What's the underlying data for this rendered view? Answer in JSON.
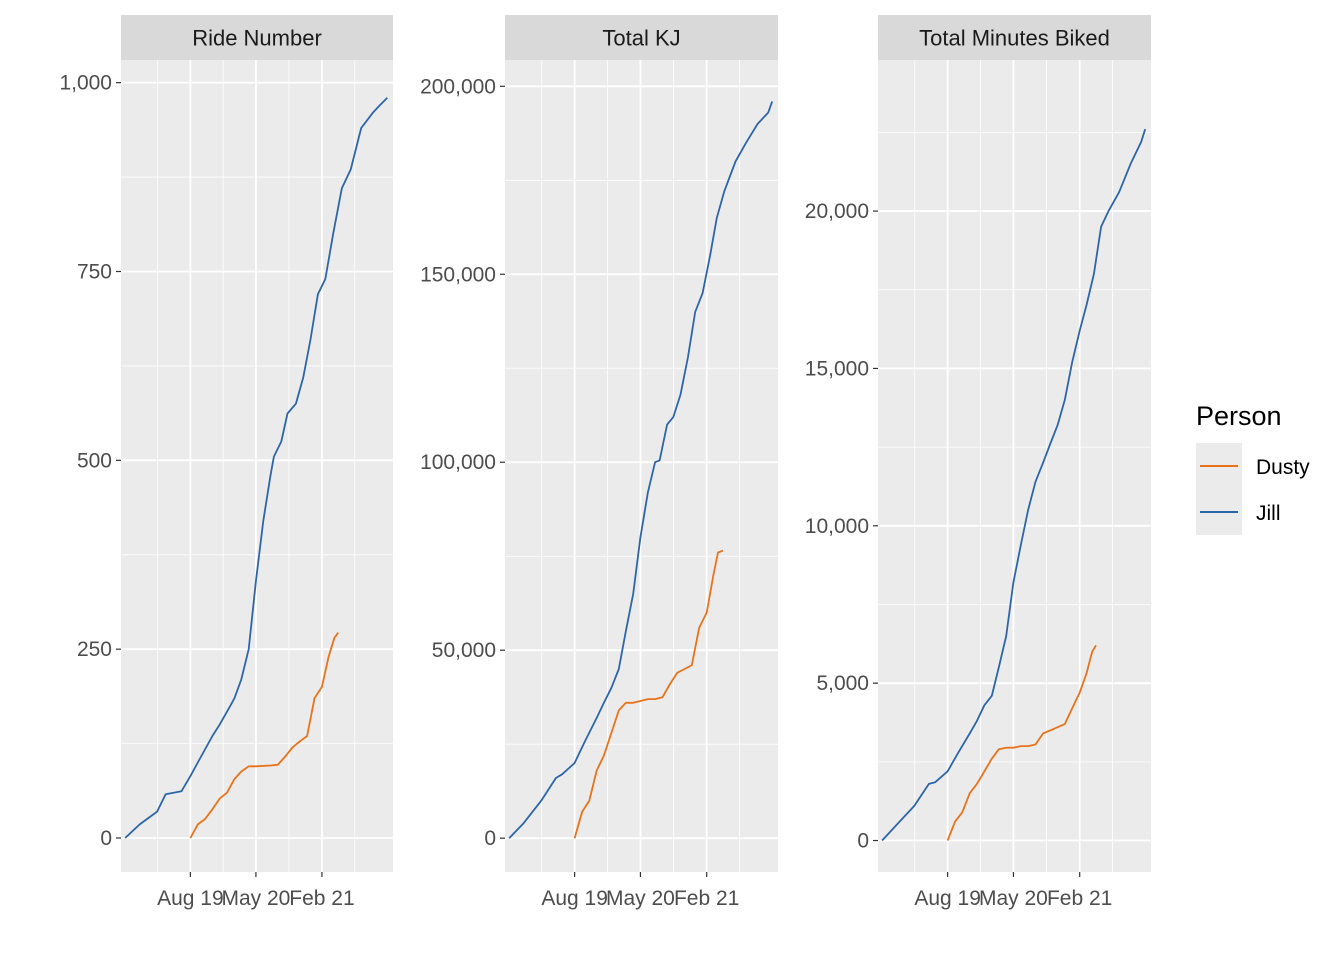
{
  "colors": {
    "panel_bg": "#EBEBEB",
    "strip_bg": "#D9D9D9",
    "grid_major": "#FFFFFF",
    "grid_minor": "#F5F5F5",
    "Dusty": "#E8731A",
    "Jill": "#2C66A8"
  },
  "legend": {
    "title": "Person",
    "position": "right",
    "items": [
      {
        "label": "Dusty",
        "color": "#E8731A"
      },
      {
        "label": "Jill",
        "color": "#2C66A8"
      }
    ]
  },
  "chart_data": [
    {
      "type": "line",
      "title": "Ride Number",
      "xlabel": "",
      "ylabel": "",
      "x_ticks": [
        "Aug 19",
        "May 20",
        "Feb 21"
      ],
      "x_tick_dates": [
        "2019-08-01",
        "2020-05-01",
        "2021-02-01"
      ],
      "xlim": [
        "2018-10-15",
        "2021-11-25"
      ],
      "y_ticks": [
        0,
        250,
        500,
        750,
        1000
      ],
      "y_tick_labels": [
        "0",
        "250",
        "500",
        "750",
        "1,000"
      ],
      "ylim": [
        -45,
        1030
      ],
      "grid": true,
      "series": [
        {
          "name": "Jill",
          "x": [
            "2018-11-01",
            "2019-01-01",
            "2019-03-15",
            "2019-04-20",
            "2019-06-25",
            "2019-08-01",
            "2019-09-01",
            "2019-11-01",
            "2019-12-01",
            "2020-01-15",
            "2020-02-01",
            "2020-03-01",
            "2020-04-01",
            "2020-05-01",
            "2020-06-01",
            "2020-07-01",
            "2020-07-15",
            "2020-08-15",
            "2020-09-10",
            "2020-10-15",
            "2020-11-15",
            "2020-12-15",
            "2021-01-15",
            "2021-02-15",
            "2021-03-20",
            "2021-04-25",
            "2021-06-01",
            "2021-07-15",
            "2021-09-01",
            "2021-10-01",
            "2021-11-01"
          ],
          "y": [
            0,
            18,
            35,
            58,
            62,
            82,
            100,
            135,
            150,
            175,
            185,
            210,
            250,
            340,
            420,
            480,
            505,
            525,
            562,
            575,
            610,
            660,
            720,
            740,
            800,
            860,
            885,
            940,
            960,
            970,
            980
          ]
        },
        {
          "name": "Dusty",
          "x": [
            "2019-08-01",
            "2019-09-01",
            "2019-10-01",
            "2019-11-01",
            "2019-12-01",
            "2020-01-01",
            "2020-02-01",
            "2020-03-01",
            "2020-04-01",
            "2020-05-01",
            "2020-07-01",
            "2020-08-01",
            "2020-09-01",
            "2020-10-01",
            "2020-11-01",
            "2020-12-01",
            "2021-01-01",
            "2021-02-01",
            "2021-03-01",
            "2021-03-25",
            "2021-04-10"
          ],
          "y": [
            0,
            18,
            25,
            38,
            52,
            60,
            78,
            88,
            95,
            95,
            96,
            97,
            108,
            120,
            128,
            135,
            185,
            200,
            240,
            265,
            272
          ]
        }
      ]
    },
    {
      "type": "line",
      "title": "Total KJ",
      "xlabel": "",
      "ylabel": "",
      "x_ticks": [
        "Aug 19",
        "May 20",
        "Feb 21"
      ],
      "x_tick_dates": [
        "2019-08-01",
        "2020-05-01",
        "2021-02-01"
      ],
      "xlim": [
        "2018-10-15",
        "2021-11-25"
      ],
      "y_ticks": [
        0,
        50000,
        100000,
        150000,
        200000
      ],
      "y_tick_labels": [
        "0",
        "50,000",
        "100,000",
        "150,000",
        "200,000"
      ],
      "ylim": [
        -9000,
        207000
      ],
      "grid": true,
      "series": [
        {
          "name": "Jill",
          "x": [
            "2018-11-01",
            "2019-01-01",
            "2019-03-15",
            "2019-05-15",
            "2019-06-10",
            "2019-08-01",
            "2019-09-15",
            "2019-11-01",
            "2019-12-01",
            "2020-01-01",
            "2020-02-01",
            "2020-03-01",
            "2020-04-01",
            "2020-05-01",
            "2020-06-01",
            "2020-07-01",
            "2020-07-20",
            "2020-08-20",
            "2020-09-15",
            "2020-10-15",
            "2020-11-15",
            "2020-12-15",
            "2021-01-15",
            "2021-02-15",
            "2021-03-15",
            "2021-04-15",
            "2021-06-01",
            "2021-07-15",
            "2021-09-01",
            "2021-10-15",
            "2021-11-01"
          ],
          "y": [
            0,
            4000,
            10000,
            16000,
            17000,
            20000,
            26000,
            32000,
            36000,
            40000,
            45000,
            55000,
            65000,
            80000,
            92000,
            100000,
            100500,
            110000,
            112000,
            118000,
            128000,
            140000,
            145000,
            155000,
            165000,
            172000,
            180000,
            185000,
            190000,
            193000,
            196000
          ]
        },
        {
          "name": "Dusty",
          "x": [
            "2019-08-01",
            "2019-09-01",
            "2019-10-01",
            "2019-11-01",
            "2019-12-01",
            "2020-01-01",
            "2020-02-01",
            "2020-03-01",
            "2020-04-01",
            "2020-05-01",
            "2020-06-01",
            "2020-07-01",
            "2020-08-01",
            "2020-09-01",
            "2020-10-01",
            "2020-11-01",
            "2020-12-01",
            "2021-01-01",
            "2021-02-01",
            "2021-03-01",
            "2021-03-20",
            "2021-04-10"
          ],
          "y": [
            0,
            7000,
            10000,
            18000,
            22000,
            28000,
            34000,
            36000,
            36000,
            36500,
            37000,
            37000,
            37500,
            41000,
            44000,
            45000,
            46000,
            56000,
            60000,
            70000,
            76000,
            76500
          ]
        }
      ]
    },
    {
      "type": "line",
      "title": "Total Minutes Biked",
      "xlabel": "",
      "ylabel": "",
      "x_ticks": [
        "Aug 19",
        "May 20",
        "Feb 21"
      ],
      "x_tick_dates": [
        "2019-08-01",
        "2020-05-01",
        "2021-02-01"
      ],
      "xlim": [
        "2018-10-15",
        "2021-11-25"
      ],
      "y_ticks": [
        0,
        5000,
        10000,
        15000,
        20000
      ],
      "y_tick_labels": [
        "0",
        "5,000",
        "10,000",
        "15,000",
        "20,000"
      ],
      "ylim": [
        -1000,
        24800
      ],
      "grid": true,
      "series": [
        {
          "name": "Jill",
          "x": [
            "2018-11-01",
            "2019-01-01",
            "2019-03-15",
            "2019-05-15",
            "2019-06-10",
            "2019-08-01",
            "2019-09-15",
            "2019-11-01",
            "2019-12-01",
            "2020-01-01",
            "2020-02-01",
            "2020-03-01",
            "2020-04-01",
            "2020-05-01",
            "2020-06-01",
            "2020-07-01",
            "2020-08-01",
            "2020-09-01",
            "2020-10-01",
            "2020-11-01",
            "2020-12-01",
            "2021-01-01",
            "2021-02-01",
            "2021-03-01",
            "2021-04-01",
            "2021-05-01",
            "2021-06-01",
            "2021-07-15",
            "2021-09-01",
            "2021-10-15",
            "2021-11-01"
          ],
          "y": [
            0,
            500,
            1100,
            1800,
            1850,
            2200,
            2800,
            3400,
            3800,
            4300,
            4600,
            5500,
            6500,
            8200,
            9400,
            10500,
            11400,
            12000,
            12600,
            13200,
            14000,
            15200,
            16200,
            17000,
            18000,
            19500,
            20000,
            20600,
            21500,
            22200,
            22600
          ]
        },
        {
          "name": "Dusty",
          "x": [
            "2019-08-01",
            "2019-09-01",
            "2019-10-01",
            "2019-11-01",
            "2019-12-01",
            "2020-01-01",
            "2020-02-01",
            "2020-03-01",
            "2020-04-01",
            "2020-05-01",
            "2020-06-01",
            "2020-07-01",
            "2020-08-01",
            "2020-09-01",
            "2020-10-01",
            "2020-11-01",
            "2020-12-01",
            "2021-01-01",
            "2021-02-01",
            "2021-03-01",
            "2021-03-25",
            "2021-04-10"
          ],
          "y": [
            0,
            600,
            900,
            1500,
            1800,
            2200,
            2600,
            2900,
            2950,
            2950,
            3000,
            3000,
            3050,
            3400,
            3500,
            3600,
            3700,
            4200,
            4700,
            5300,
            6000,
            6200
          ]
        }
      ]
    }
  ]
}
